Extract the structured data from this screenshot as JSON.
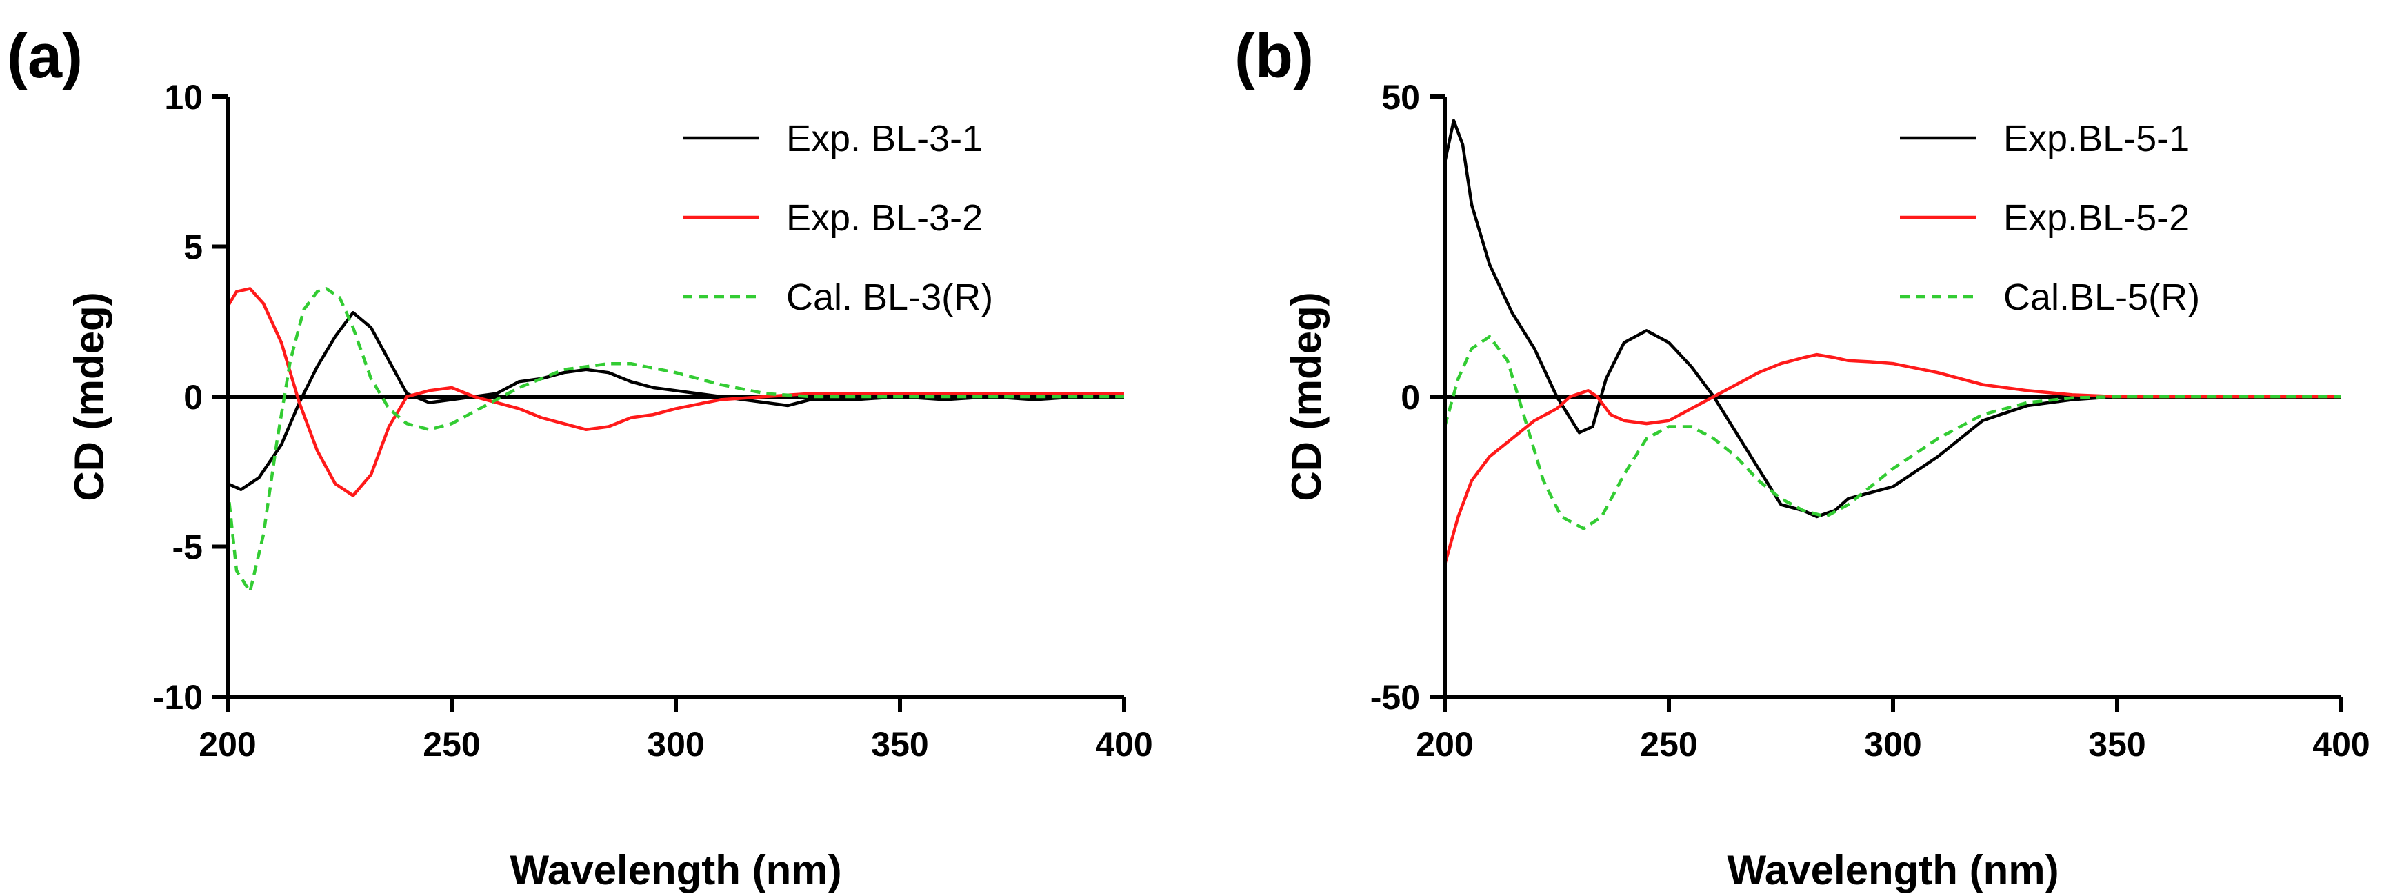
{
  "chart_data": [
    {
      "type": "line",
      "panel_label": "(a)",
      "xlabel": "Wavelength (nm)",
      "ylabel": "CD (mdeg)",
      "xlim": [
        200,
        400
      ],
      "ylim": [
        -10,
        10
      ],
      "xticks": [
        200,
        250,
        300,
        350,
        400
      ],
      "xtick_labels": [
        "200",
        "250",
        "300",
        "350",
        "400"
      ],
      "yticks": [
        -10,
        -5,
        0,
        5,
        10
      ],
      "ytick_labels": [
        "-10",
        "-5",
        "0",
        "5",
        "10"
      ],
      "zero_line": true,
      "legend_position": "top-right",
      "series": [
        {
          "name": "Exp. BL-3-1",
          "color": "#000000",
          "dash": "solid",
          "x": [
            200,
            203,
            207,
            212,
            216,
            220,
            224,
            228,
            232,
            236,
            240,
            245,
            250,
            255,
            260,
            265,
            270,
            275,
            280,
            285,
            290,
            295,
            300,
            310,
            320,
            325,
            330,
            340,
            350,
            360,
            370,
            380,
            390,
            400
          ],
          "y": [
            -2.9,
            -3.1,
            -2.7,
            -1.6,
            -0.2,
            1.0,
            2.0,
            2.8,
            2.3,
            1.2,
            0.1,
            -0.2,
            -0.1,
            0.0,
            0.1,
            0.5,
            0.6,
            0.8,
            0.9,
            0.8,
            0.5,
            0.3,
            0.2,
            0.0,
            -0.2,
            -0.3,
            -0.1,
            -0.1,
            0.0,
            -0.1,
            0.0,
            -0.1,
            0.0,
            0.0
          ]
        },
        {
          "name": "Exp. BL-3-2",
          "color": "#ff1a1a",
          "dash": "solid",
          "x": [
            200,
            202,
            205,
            208,
            212,
            216,
            220,
            224,
            228,
            232,
            236,
            240,
            245,
            250,
            255,
            260,
            265,
            270,
            275,
            280,
            285,
            290,
            295,
            300,
            310,
            320,
            330,
            340,
            350,
            360,
            370,
            380,
            390,
            400
          ],
          "y": [
            3.0,
            3.5,
            3.6,
            3.1,
            1.8,
            -0.2,
            -1.8,
            -2.9,
            -3.3,
            -2.6,
            -1.0,
            0.0,
            0.2,
            0.3,
            0.0,
            -0.2,
            -0.4,
            -0.7,
            -0.9,
            -1.1,
            -1.0,
            -0.7,
            -0.6,
            -0.4,
            -0.1,
            0.0,
            0.1,
            0.1,
            0.1,
            0.1,
            0.1,
            0.1,
            0.1,
            0.1
          ]
        },
        {
          "name": "Cal. BL-3(R)",
          "color": "#33cc33",
          "dash": "dashed",
          "x": [
            200,
            202,
            205,
            208,
            211,
            214,
            217,
            220,
            222,
            225,
            228,
            232,
            236,
            240,
            245,
            250,
            255,
            260,
            265,
            270,
            275,
            280,
            285,
            290,
            300,
            310,
            320,
            330,
            340,
            350,
            360,
            370,
            380,
            390,
            400
          ],
          "y": [
            -3.0,
            -5.8,
            -6.5,
            -4.6,
            -1.5,
            1.2,
            2.9,
            3.5,
            3.6,
            3.3,
            2.3,
            0.6,
            -0.4,
            -0.9,
            -1.1,
            -0.9,
            -0.5,
            -0.1,
            0.3,
            0.6,
            0.9,
            1.0,
            1.1,
            1.1,
            0.8,
            0.4,
            0.1,
            0.0,
            0.0,
            0.0,
            0.0,
            0.0,
            0.0,
            0.0,
            0.0
          ]
        }
      ]
    },
    {
      "type": "line",
      "panel_label": "(b)",
      "xlabel": "Wavelength (nm)",
      "ylabel": "CD (mdeg)",
      "xlim": [
        200,
        400
      ],
      "ylim": [
        -50,
        50
      ],
      "xticks": [
        200,
        250,
        300,
        350,
        400
      ],
      "xtick_labels": [
        "200",
        "250",
        "300",
        "350",
        "400"
      ],
      "yticks": [
        -50,
        0,
        50
      ],
      "ytick_labels": [
        "-50",
        "0",
        "50"
      ],
      "zero_line": true,
      "legend_position": "top-right",
      "series": [
        {
          "name": "Exp.BL-5-1",
          "color": "#000000",
          "dash": "solid",
          "x": [
            200,
            202,
            204,
            206,
            210,
            215,
            220,
            225,
            230,
            233,
            236,
            240,
            245,
            250,
            255,
            260,
            265,
            270,
            275,
            280,
            283,
            287,
            290,
            295,
            300,
            310,
            320,
            330,
            340,
            350,
            360,
            370,
            380,
            390,
            400
          ],
          "y": [
            39,
            46,
            42,
            32,
            22,
            14,
            8,
            0,
            -6,
            -5,
            3,
            9,
            11,
            9,
            5,
            0,
            -6,
            -12,
            -18,
            -19,
            -20,
            -19,
            -17,
            -16,
            -15,
            -10,
            -4,
            -1.5,
            -0.5,
            0,
            0,
            0,
            0,
            0,
            0
          ]
        },
        {
          "name": "Exp.BL-5-2",
          "color": "#ff1a1a",
          "dash": "solid",
          "x": [
            200,
            203,
            206,
            210,
            215,
            220,
            225,
            228,
            232,
            234,
            237,
            240,
            245,
            250,
            255,
            260,
            265,
            270,
            275,
            280,
            283,
            287,
            290,
            295,
            300,
            310,
            320,
            330,
            340,
            350,
            360,
            370,
            380,
            390,
            400
          ],
          "y": [
            -28,
            -20,
            -14,
            -10,
            -7,
            -4,
            -2,
            0,
            1,
            0,
            -3,
            -4,
            -4.5,
            -4,
            -2,
            0,
            2,
            4,
            5.5,
            6.5,
            7,
            6.5,
            6,
            5.8,
            5.5,
            4,
            2,
            1,
            0.3,
            0,
            0,
            0,
            0,
            0,
            0
          ]
        },
        {
          "name": "Cal.BL-5(R)",
          "color": "#33cc33",
          "dash": "dashed",
          "x": [
            200,
            203,
            206,
            210,
            214,
            218,
            222,
            226,
            231,
            235,
            240,
            245,
            250,
            255,
            260,
            265,
            270,
            275,
            280,
            285,
            290,
            295,
            300,
            310,
            320,
            330,
            340,
            350,
            360,
            370,
            380,
            390,
            400
          ],
          "y": [
            -5,
            3,
            8,
            10,
            6,
            -4,
            -14,
            -20,
            -22,
            -20,
            -13,
            -7,
            -5,
            -5,
            -7,
            -10,
            -14,
            -17,
            -19,
            -20,
            -18,
            -15,
            -12,
            -7,
            -3,
            -1,
            -0.2,
            0,
            0,
            0,
            0,
            0,
            0
          ]
        }
      ]
    }
  ]
}
